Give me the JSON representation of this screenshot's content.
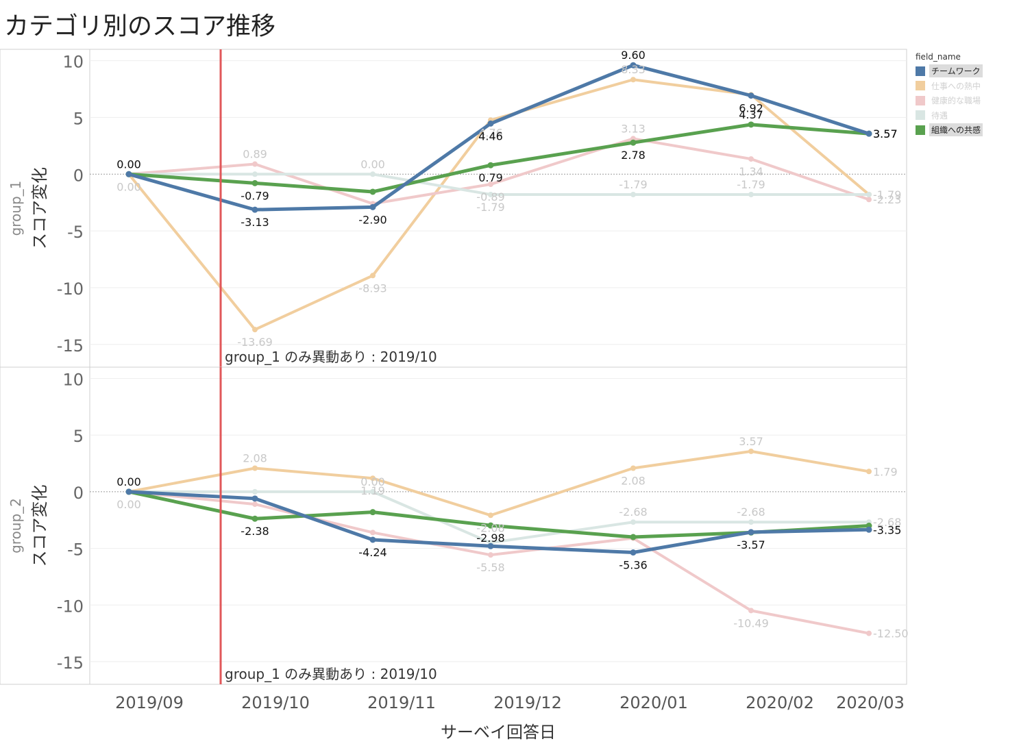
{
  "chart_data": {
    "type": "line",
    "title": "カテゴリ別のスコア推移",
    "xlabel": "サーベイ回答日",
    "ylabel": "スコア変化",
    "x_ticks": [
      "2019/09",
      "2019/10",
      "2019/11",
      "2019/12",
      "2020/01",
      "2020/02",
      "2020/03"
    ],
    "ylim": [
      -17,
      11
    ],
    "y_ticks": [
      10,
      5,
      0,
      -5,
      -10,
      -15
    ],
    "grid": true,
    "legend": {
      "title": "field_name",
      "placement": "right",
      "items": [
        {
          "name": "チームワーク",
          "color": "#4e79a7",
          "highlighted": true
        },
        {
          "name": "仕事への熱中",
          "color": "#f1ce9e",
          "highlighted": false
        },
        {
          "name": "健康的な職場",
          "color": "#f0c9ca",
          "highlighted": false
        },
        {
          "name": "待遇",
          "color": "#d9e6e3",
          "highlighted": false
        },
        {
          "name": "組織への共感",
          "color": "#59a14f",
          "highlighted": true
        }
      ]
    },
    "reference_line": {
      "x": "2019/10",
      "label": "group_1 のみ異動あり : 2019/10",
      "color": "#e15759"
    },
    "panels": [
      {
        "row_label": "group_1",
        "series": [
          {
            "name": "仕事への熱中",
            "x": [
              "2019/09",
              "2019/10",
              "2019/11",
              "2019/12",
              "2020/01",
              "2020/02",
              "2020/03"
            ],
            "values": [
              0.0,
              -13.69,
              -8.93,
              4.76,
              8.33,
              7.0,
              -1.79
            ],
            "labels": [
              "0.00",
              "-13.69",
              "-8.93",
              "4.76",
              "8.33",
              "",
              "-1.79"
            ]
          },
          {
            "name": "健康的な職場",
            "x": [
              "2019/09",
              "2019/10",
              "2019/11",
              "2019/12",
              "2020/01",
              "2020/02",
              "2020/03"
            ],
            "values": [
              0.0,
              0.89,
              -2.6,
              -0.89,
              3.13,
              1.34,
              -2.23
            ],
            "labels": [
              "0.00",
              "0.89",
              "",
              "-0.89",
              "3.13",
              "1.34",
              "-2.23"
            ]
          },
          {
            "name": "待遇",
            "x": [
              "2019/09",
              "2019/10",
              "2019/11",
              "2019/12",
              "2020/01",
              "2020/02",
              "2020/03"
            ],
            "values": [
              0.0,
              0.0,
              0.0,
              -1.79,
              -1.79,
              -1.79,
              -1.79
            ],
            "labels": [
              "0.00",
              "",
              "0.00",
              "-1.79",
              "-1.79",
              "-1.79",
              ""
            ]
          },
          {
            "name": "組織への共感",
            "x": [
              "2019/09",
              "2019/10",
              "2019/11",
              "2019/12",
              "2020/01",
              "2020/02",
              "2020/03"
            ],
            "values": [
              0.0,
              -0.79,
              -1.55,
              0.79,
              2.78,
              4.37,
              3.57
            ],
            "labels": [
              "",
              "-0.79",
              "",
              "0.79",
              "2.78",
              "4.37",
              "3.57"
            ]
          },
          {
            "name": "チームワーク",
            "x": [
              "2019/09",
              "2019/10",
              "2019/11",
              "2019/12",
              "2020/01",
              "2020/02",
              "2020/03"
            ],
            "values": [
              0.0,
              -3.13,
              -2.9,
              4.46,
              9.6,
              6.92,
              3.57
            ],
            "labels": [
              "0.00",
              "-3.13",
              "-2.90",
              "4.46",
              "9.60",
              "6.92",
              "3.57"
            ]
          }
        ]
      },
      {
        "row_label": "group_2",
        "series": [
          {
            "name": "仕事への熱中",
            "x": [
              "2019/09",
              "2019/10",
              "2019/11",
              "2019/12",
              "2020/01",
              "2020/02",
              "2020/03"
            ],
            "values": [
              0.0,
              2.08,
              1.19,
              -2.08,
              2.08,
              3.57,
              1.79
            ],
            "labels": [
              "0.00",
              "2.08",
              "1.19",
              "-2.08",
              "2.08",
              "3.57",
              "1.79"
            ]
          },
          {
            "name": "健康的な職場",
            "x": [
              "2019/09",
              "2019/10",
              "2019/11",
              "2019/12",
              "2020/01",
              "2020/02",
              "2020/03"
            ],
            "values": [
              0.0,
              -1.1,
              -3.6,
              -5.58,
              -4.1,
              -10.49,
              -12.5
            ],
            "labels": [
              "",
              "",
              "",
              "-5.58",
              "",
              "-10.49",
              "-12.50"
            ]
          },
          {
            "name": "待遇",
            "x": [
              "2019/09",
              "2019/10",
              "2019/11",
              "2019/12",
              "2020/01",
              "2020/02",
              "2020/03"
            ],
            "values": [
              0.0,
              0.0,
              0.0,
              -4.5,
              -2.68,
              -2.68,
              -2.68
            ],
            "labels": [
              "",
              "",
              "0.00",
              "",
              "-2.68",
              "-2.68",
              "-2.68"
            ]
          },
          {
            "name": "組織への共感",
            "x": [
              "2019/09",
              "2019/10",
              "2019/11",
              "2019/12",
              "2020/01",
              "2020/02",
              "2020/03"
            ],
            "values": [
              0.0,
              -2.38,
              -1.8,
              -2.98,
              -4.0,
              -3.6,
              -3.0
            ],
            "labels": [
              "",
              "-2.38",
              "",
              "-2.98",
              "",
              "",
              ""
            ]
          },
          {
            "name": "チームワーク",
            "x": [
              "2019/09",
              "2019/10",
              "2019/11",
              "2019/12",
              "2020/01",
              "2020/02",
              "2020/03"
            ],
            "values": [
              0.0,
              -0.6,
              -4.24,
              -4.8,
              -5.36,
              -3.57,
              -3.35
            ],
            "labels": [
              "0.00",
              "",
              "-4.24",
              "",
              "-5.36",
              "-3.57",
              "-3.35"
            ]
          }
        ]
      }
    ]
  }
}
